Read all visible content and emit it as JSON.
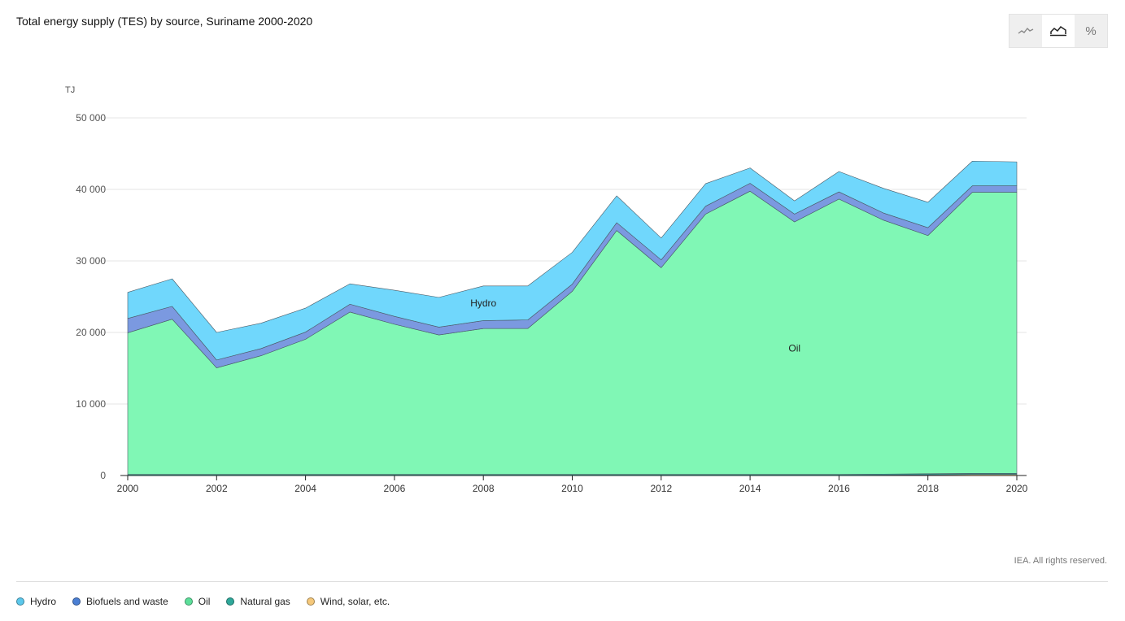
{
  "title": "Total energy supply (TES) by source, Suriname 2000-2020",
  "copyright": "IEA. All rights reserved.",
  "toggle": {
    "percent_label": "%"
  },
  "legend": [
    {
      "label": "Hydro",
      "color": "#5bc8ec"
    },
    {
      "label": "Biofuels and waste",
      "color": "#4a7fd4"
    },
    {
      "label": "Oil",
      "color": "#5cdf9a"
    },
    {
      "label": "Natural gas",
      "color": "#2ea89a"
    },
    {
      "label": "Wind, solar, etc.",
      "color": "#f5c87a"
    }
  ],
  "chart_data": {
    "type": "area",
    "stacked": true,
    "ylabel": "TJ",
    "ylim": [
      0,
      50000
    ],
    "yticks": [
      0,
      10000,
      20000,
      30000,
      40000,
      50000
    ],
    "ytick_labels": [
      "0",
      "10 000",
      "20 000",
      "30 000",
      "40 000",
      "50 000"
    ],
    "xticks": [
      2000,
      2002,
      2004,
      2006,
      2008,
      2010,
      2012,
      2014,
      2016,
      2018,
      2020
    ],
    "x": [
      2000,
      2001,
      2002,
      2003,
      2004,
      2005,
      2006,
      2007,
      2008,
      2009,
      2010,
      2011,
      2012,
      2013,
      2014,
      2015,
      2016,
      2017,
      2018,
      2019,
      2020
    ],
    "grid": true,
    "series": [
      {
        "name": "Wind, solar, etc.",
        "color": "#f5c87a",
        "values": [
          0,
          0,
          0,
          0,
          0,
          0,
          0,
          0,
          0,
          0,
          0,
          0,
          0,
          0,
          0,
          0,
          0,
          50,
          100,
          150,
          150
        ]
      },
      {
        "name": "Natural gas",
        "color": "#2ea89a",
        "values": [
          150,
          150,
          150,
          150,
          150,
          150,
          150,
          150,
          150,
          150,
          150,
          150,
          150,
          150,
          150,
          150,
          150,
          150,
          150,
          150,
          150
        ]
      },
      {
        "name": "Oil",
        "color": "#80f7b5",
        "values": [
          19800,
          21700,
          14900,
          16600,
          18900,
          22700,
          21000,
          19500,
          20400,
          20400,
          25600,
          34100,
          28900,
          36400,
          39600,
          35300,
          38500,
          35500,
          33300,
          39300,
          39300
        ]
      },
      {
        "name": "Biofuels and waste",
        "color": "#7b99e0",
        "values": [
          2000,
          1800,
          1100,
          1000,
          1000,
          1100,
          1100,
          1100,
          1100,
          1200,
          1000,
          1100,
          1100,
          1100,
          1100,
          1100,
          1000,
          1000,
          1100,
          900,
          900
        ]
      },
      {
        "name": "Hydro",
        "color": "#70d7fc",
        "values": [
          3650,
          3850,
          3850,
          3550,
          3350,
          2850,
          3650,
          4150,
          4850,
          4750,
          4450,
          3750,
          3050,
          3150,
          2150,
          1850,
          2850,
          3450,
          3550,
          3450,
          3350
        ]
      }
    ],
    "annotations": [
      {
        "text": "Hydro",
        "series": "Hydro",
        "x": 2008
      },
      {
        "text": "Oil",
        "series": "Oil",
        "x": 2015
      }
    ]
  }
}
